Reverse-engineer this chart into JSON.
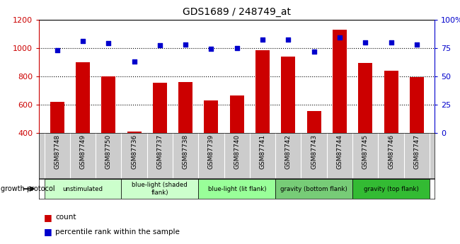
{
  "title": "GDS1689 / 248749_at",
  "samples": [
    "GSM87748",
    "GSM87749",
    "GSM87750",
    "GSM87736",
    "GSM87737",
    "GSM87738",
    "GSM87739",
    "GSM87740",
    "GSM87741",
    "GSM87742",
    "GSM87743",
    "GSM87744",
    "GSM87745",
    "GSM87746",
    "GSM87747"
  ],
  "counts": [
    620,
    900,
    800,
    410,
    755,
    760,
    630,
    665,
    985,
    940,
    555,
    1130,
    895,
    840,
    795
  ],
  "percentiles": [
    73,
    81,
    79,
    63,
    77,
    78,
    74,
    75,
    82,
    82,
    72,
    84,
    80,
    80,
    78
  ],
  "ylim_left": [
    400,
    1200
  ],
  "ylim_right": [
    0,
    100
  ],
  "yticks_left": [
    400,
    600,
    800,
    1000,
    1200
  ],
  "yticks_right": [
    0,
    25,
    50,
    75,
    100
  ],
  "ytick_labels_right": [
    "0",
    "25",
    "50",
    "75",
    "100%"
  ],
  "bar_color": "#cc0000",
  "dot_color": "#0000cc",
  "grid_color": "#000000",
  "tick_area_color": "#cccccc",
  "groups": [
    {
      "label": "unstimulated",
      "start": 0,
      "end": 2,
      "color": "#ccffcc"
    },
    {
      "label": "blue-light (shaded\nflank)",
      "start": 3,
      "end": 5,
      "color": "#ccffcc"
    },
    {
      "label": "blue-light (lit flank)",
      "start": 6,
      "end": 8,
      "color": "#99ff99"
    },
    {
      "label": "gravity (bottom flank)",
      "start": 9,
      "end": 11,
      "color": "#77cc77"
    },
    {
      "label": "gravity (top flank)",
      "start": 12,
      "end": 14,
      "color": "#33bb33"
    }
  ]
}
